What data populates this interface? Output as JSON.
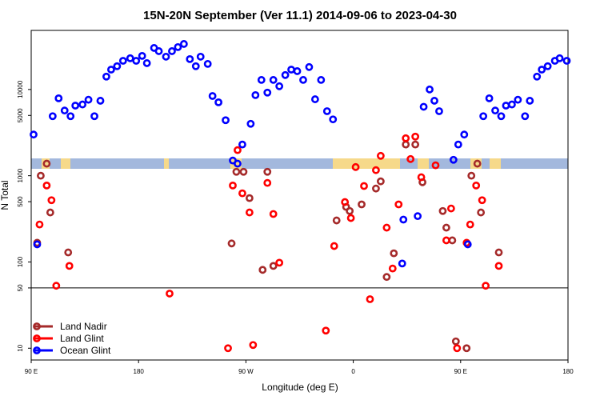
{
  "chart_data": {
    "type": "scatter",
    "title": "15N-20N September (Ver 11.1)   2014-09-06 to 2023-04-30",
    "x_label": "Longitude (deg E)",
    "y_label": "N Total",
    "xlim": [
      90,
      540
    ],
    "ylim": [
      7.3,
      48400
    ],
    "log_y": true,
    "xticks": [
      {
        "value": 90,
        "label": "90 E"
      },
      {
        "value": 180,
        "label": "180"
      },
      {
        "value": 270,
        "label": "90 W"
      },
      {
        "value": 360,
        "label": "0"
      },
      {
        "value": 450,
        "label": "90 E"
      },
      {
        "value": 540,
        "label": "180"
      }
    ],
    "yticks": [
      10,
      50,
      100,
      500,
      1000,
      5000,
      10000
    ],
    "hline": 50,
    "legend": "lower left",
    "series": [
      {
        "name": "Land Nadir",
        "color": "#a52a2a",
        "x": [
          95,
          98,
          103,
          106,
          121,
          258,
          262,
          268,
          273,
          288,
          284,
          293,
          346,
          354,
          357,
          367,
          379,
          383,
          388,
          394,
          404,
          412,
          418,
          435,
          438,
          443,
          446,
          455,
          459,
          464,
          467,
          482
        ],
        "values": [
          167,
          1000,
          1380,
          375,
          129,
          164,
          1110,
          1110,
          550,
          1110,
          81,
          90,
          303,
          435,
          390,
          465,
          710,
          860,
          67,
          126,
          2300,
          2300,
          840,
          390,
          250,
          178,
          12,
          10,
          1000,
          1380,
          375,
          129
        ]
      },
      {
        "name": "Land Glint",
        "color": "#ff0000",
        "x": [
          97,
          103,
          107,
          111,
          122,
          206,
          255,
          259,
          263,
          267,
          273,
          276,
          288,
          293,
          298,
          337,
          344,
          353,
          358,
          362,
          369,
          374,
          379,
          383,
          388,
          393,
          398,
          404,
          408,
          412,
          417,
          429,
          438,
          442,
          447,
          455,
          458,
          463,
          468,
          471,
          482
        ],
        "values": [
          272,
          770,
          520,
          53,
          90,
          43,
          10,
          770,
          1980,
          625,
          375,
          10.9,
          825,
          360,
          98,
          16,
          153,
          495,
          323,
          1260,
          760,
          37,
          1160,
          1700,
          250,
          84,
          465,
          2720,
          1560,
          2840,
          960,
          1320,
          178,
          417,
          10,
          167,
          272,
          770,
          520,
          53,
          90
        ]
      },
      {
        "name": "Ocean Glint",
        "color": "#0000ff",
        "x": [
          92,
          95,
          108,
          113,
          118,
          123,
          127,
          133,
          138,
          143,
          148,
          153,
          157,
          162,
          167,
          173,
          178,
          183,
          187,
          193,
          197,
          203,
          208,
          213,
          218,
          223,
          228,
          232,
          238,
          242,
          247,
          253,
          259,
          263,
          267,
          274,
          278,
          283,
          288,
          293,
          298,
          303,
          308,
          313,
          318,
          323,
          328,
          333,
          338,
          343,
          401,
          402,
          414,
          419,
          424,
          428,
          432,
          444,
          448,
          453,
          456,
          469,
          474,
          479,
          484,
          488,
          493,
          498,
          504,
          508,
          514,
          518,
          523,
          529,
          533,
          539
        ],
        "values": [
          3000,
          160,
          4900,
          7900,
          5700,
          4900,
          6500,
          6700,
          7600,
          4900,
          7400,
          14100,
          17000,
          18600,
          21500,
          23000,
          21500,
          24500,
          20200,
          30300,
          27800,
          24000,
          27800,
          31000,
          33700,
          22500,
          18600,
          24000,
          19800,
          8400,
          7100,
          4400,
          1500,
          1380,
          2300,
          4000,
          8600,
          12900,
          9200,
          12900,
          10900,
          14700,
          17000,
          16300,
          12900,
          18200,
          7700,
          12900,
          5600,
          4500,
          96,
          310,
          340,
          6300,
          10000,
          7400,
          5600,
          1530,
          2300,
          3000,
          160,
          4900,
          7900,
          5700,
          4900,
          6500,
          6700,
          7600,
          4900,
          7400,
          14100,
          17000,
          18600,
          21500,
          23000,
          21500
        ]
      }
    ]
  }
}
